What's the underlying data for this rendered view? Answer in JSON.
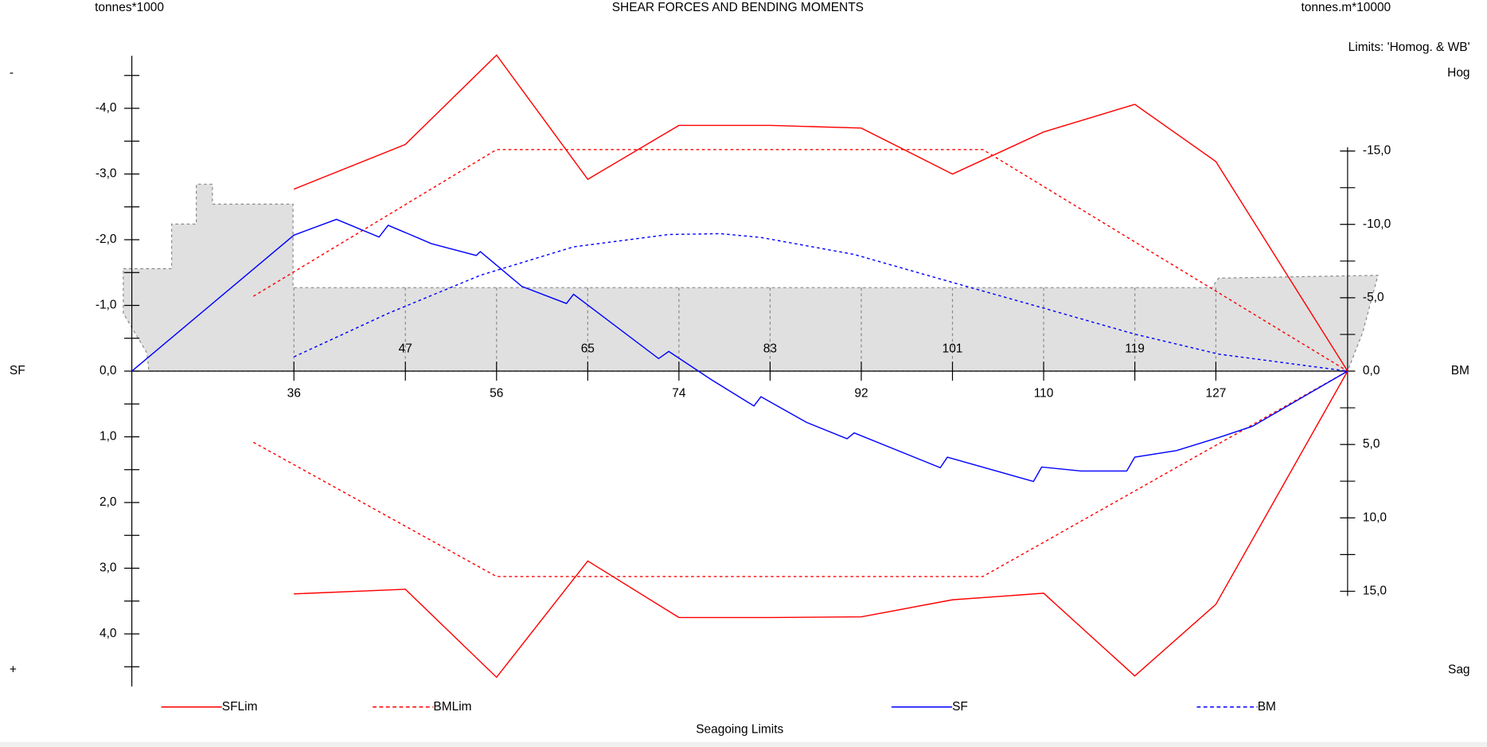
{
  "chart_data": {
    "type": "line",
    "title": "SHEAR FORCES AND BENDING MOMENTS",
    "y_unit": "tonnes*1000",
    "y2_unit": "tonnes.m*10000",
    "y_label": "SF",
    "y2_label": "BM",
    "limits_note": "Limits: 'Homog. & WB'",
    "top_label": "Hog",
    "bottom_label": "Sag",
    "top_sign": "-",
    "bottom_sign": "+",
    "footer": "Seagoing Limits",
    "xlim": [
      20,
      140
    ],
    "xticks": [
      36,
      47,
      56,
      65,
      74,
      83,
      92,
      101,
      110,
      119,
      127
    ],
    "ylim": [
      4.8,
      -4.8
    ],
    "yticks": [
      {
        "value": -4,
        "label": "-4,0"
      },
      {
        "value": -3,
        "label": "-3,0"
      },
      {
        "value": -2,
        "label": "-2,0"
      },
      {
        "value": -1,
        "label": "-1,0"
      },
      {
        "value": 0,
        "label": "0,0"
      },
      {
        "value": 1,
        "label": "1,0"
      },
      {
        "value": 2,
        "label": "2,0"
      },
      {
        "value": 3,
        "label": "3,0"
      },
      {
        "value": 4,
        "label": "4,0"
      }
    ],
    "yminorticks": [
      -4.5,
      -3.5,
      -2.5,
      -1.5,
      -0.5,
      0.5,
      1.5,
      2.5,
      3.5,
      4.5
    ],
    "y2lim": [
      15,
      -15
    ],
    "y2ticks": [
      {
        "value": -15,
        "label": "-15,0"
      },
      {
        "value": -10,
        "label": "-10,0"
      },
      {
        "value": -5,
        "label": "-5,0"
      },
      {
        "value": 0,
        "label": "0,0"
      },
      {
        "value": 5,
        "label": "5,0"
      },
      {
        "value": 10,
        "label": "10,0"
      },
      {
        "value": 15,
        "label": "15,0"
      }
    ],
    "y2minorticks": [
      -12.5,
      -7.5,
      -2.5,
      2.5,
      7.5,
      12.5
    ],
    "series": [
      {
        "name": "SFLim",
        "color": "#ff0000",
        "dash": false,
        "axis": "y",
        "x": [
          36,
          47,
          56,
          65,
          74,
          83,
          92,
          101,
          110,
          119,
          127,
          140
        ],
        "values": [
          -2.77,
          -3.45,
          -4.81,
          -2.92,
          -3.74,
          -3.74,
          -3.7,
          -3.0,
          -3.64,
          -4.06,
          -3.19,
          0
        ],
        "lower_values": [
          3.39,
          3.32,
          4.66,
          2.89,
          3.75,
          3.75,
          3.74,
          3.48,
          3.38,
          4.64,
          3.55,
          0
        ]
      },
      {
        "name": "BMLim",
        "color": "#ff0000",
        "dash": true,
        "axis": "y2",
        "x": [
          32,
          56,
          104,
          140
        ],
        "values": [
          -5.1,
          -15.1,
          -15.1,
          0
        ],
        "lower_values": [
          4.85,
          14.0,
          14.0,
          0
        ]
      },
      {
        "name": "SF",
        "color": "#0000ff",
        "dash": false,
        "axis": "y",
        "x": [
          20,
          36,
          40.2,
          44.4,
          45.3,
          49.6,
          54,
          54.4,
          58.5,
          62.9,
          63.6,
          72,
          73,
          77.2,
          81.4,
          82.1,
          86.6,
          90.6,
          91.3,
          99.8,
          100.5,
          109,
          109.8,
          113.7,
          118.2,
          119,
          123.1,
          127.3,
          130.6,
          140
        ],
        "values": [
          0,
          -2.07,
          -2.31,
          -2.04,
          -2.22,
          -1.94,
          -1.76,
          -1.82,
          -1.29,
          -1.03,
          -1.17,
          -0.19,
          -0.3,
          0.13,
          0.53,
          0.39,
          0.78,
          1.03,
          0.94,
          1.47,
          1.31,
          1.68,
          1.46,
          1.52,
          1.52,
          1.31,
          1.21,
          1.01,
          0.84,
          0
        ]
      },
      {
        "name": "BM",
        "color": "#0000ff",
        "dash": true,
        "axis": "y2",
        "x": [
          36,
          45.3,
          54.4,
          63.6,
          73,
          78.1,
          82.1,
          91.3,
          100.5,
          109.8,
          119,
          127.3,
          140
        ],
        "values": [
          -0.97,
          -3.94,
          -6.53,
          -8.47,
          -9.31,
          -9.37,
          -9.11,
          -7.95,
          -6.14,
          -4.33,
          -2.52,
          -1.16,
          0
        ]
      }
    ]
  }
}
